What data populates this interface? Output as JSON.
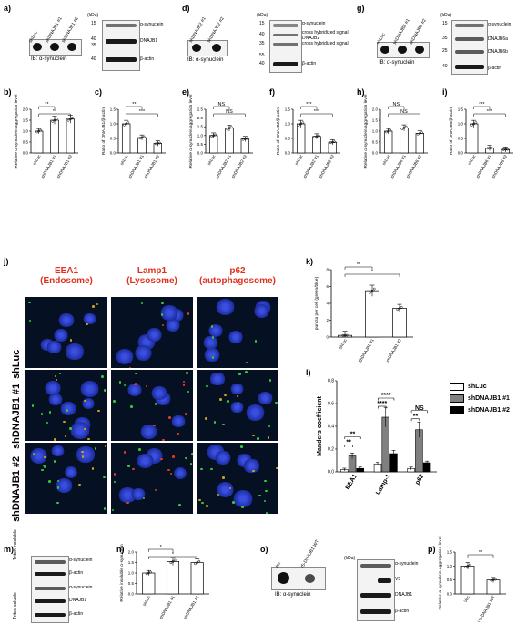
{
  "panels": {
    "a": {
      "letter": "a)",
      "lanes": [
        "shLuc",
        "shDNAJB1 #1",
        "shDNAJB1 #2"
      ],
      "ib": "IB: α-synuclein",
      "kda": "(kDa)",
      "markers": [
        "15",
        "40",
        "35",
        "40"
      ],
      "bands": [
        "α-synuclein",
        "DNAJB1",
        "β-actin"
      ]
    },
    "d": {
      "letter": "d)",
      "lanes": [
        "shDNAJB2 #1",
        "shDNAJB2 #2"
      ],
      "ib": "IB: α-synuclein",
      "kda": "(kDa)",
      "markers": [
        "15",
        "40",
        "35",
        "55",
        "40"
      ],
      "bands": [
        "α-synuclein",
        "cross hybridized signal",
        "DNAJB2",
        "cross hybridized signal",
        "β-actin"
      ]
    },
    "g": {
      "letter": "g)",
      "lanes": [
        "shLuc",
        "shDNAJB6 #1",
        "shDNAJB6 #2"
      ],
      "ib": "IB: α-synuclein",
      "kda": "(kDa)",
      "markers": [
        "15",
        "35",
        "25",
        "40"
      ],
      "bands": [
        "α-synuclein",
        "DNAJB6a",
        "DNAJB6b",
        "β-actin"
      ]
    },
    "m": {
      "letter": "m)",
      "side_labels": [
        "Triton insoluble",
        "Triton soluble"
      ],
      "bands": [
        "α-synuclein",
        "β-actin",
        "α-synuclein",
        "DNAJB1",
        "β-actin"
      ]
    },
    "o": {
      "letter": "o)",
      "lanes": [
        "Vec",
        "V5-DNAJB1 WT"
      ],
      "ib": "IB: α-synuclein",
      "kda": "(kDa)",
      "bands": [
        "α-synuclein",
        "V5",
        "DNAJB1",
        "β-actin"
      ]
    }
  },
  "j": {
    "letter": "j)",
    "columns": [
      {
        "name": "EEA1",
        "sub": "(Endosome)"
      },
      {
        "name": "Lamp1",
        "sub": "(Lysosome)"
      },
      {
        "name": "p62",
        "sub": "(autophagosome)"
      }
    ],
    "rows": [
      "shLuc",
      "shDNAJB1 #1",
      "shDNAJB1 #2"
    ],
    "scale_bar": "20 μm"
  },
  "legend": {
    "items": [
      {
        "label": "shLuc",
        "color": "#ffffff"
      },
      {
        "label": "shDNAJB1 #1",
        "color": "#808080"
      },
      {
        "label": "shDNAJB1 #2",
        "color": "#000000"
      }
    ]
  },
  "chart_data": [
    {
      "panel": "b",
      "type": "bar",
      "categories": [
        "shLuc",
        "shDNAJB1 #1",
        "shDNAJB1 #2"
      ],
      "values": [
        1.0,
        1.5,
        1.55
      ],
      "ylabel": "Relative α-synuclein aggregation level",
      "ylim": [
        0,
        2.0
      ],
      "yticks": [
        0.0,
        0.5,
        1.0,
        1.5,
        2.0
      ],
      "sig": [
        "**",
        "**"
      ]
    },
    {
      "panel": "c",
      "type": "bar",
      "categories": [
        "shLuc",
        "shDNAJB1 #1",
        "shDNAJB1 #2"
      ],
      "values": [
        1.0,
        0.53,
        0.33
      ],
      "ylabel": "Ratio of DNAJB1/β-actin",
      "ylim": [
        0,
        1.5
      ],
      "yticks": [
        0.0,
        0.5,
        1.0,
        1.5
      ],
      "sig": [
        "**",
        "***"
      ]
    },
    {
      "panel": "e",
      "type": "bar",
      "categories": [
        "shLuc",
        "shDNAJB2 #1",
        "shDNAJB2 #2"
      ],
      "values": [
        1.0,
        1.42,
        0.8
      ],
      "ylabel": "Relative α-synuclein aggregation level",
      "ylim": [
        0,
        2.5
      ],
      "yticks": [
        0.0,
        0.5,
        1.0,
        1.5,
        2.0,
        2.5
      ],
      "sig": [
        "NS",
        "NS"
      ]
    },
    {
      "panel": "f",
      "type": "bar",
      "categories": [
        "shLuc",
        "shDNAJB2 #1",
        "shDNAJB2 #2"
      ],
      "values": [
        1.0,
        0.57,
        0.37
      ],
      "ylabel": "Ratio of DNAJB2/β-actin",
      "ylim": [
        0,
        1.5
      ],
      "yticks": [
        0.0,
        0.5,
        1.0,
        1.5
      ],
      "sig": [
        "***",
        "***"
      ]
    },
    {
      "panel": "h",
      "type": "bar",
      "categories": [
        "shLuc",
        "shDNAJB6 #1",
        "shDNAJB6 #2"
      ],
      "values": [
        1.0,
        1.15,
        0.9
      ],
      "ylabel": "Relative α-synuclein aggregation level",
      "ylim": [
        0,
        2.0
      ],
      "yticks": [
        0.0,
        0.5,
        1.0,
        1.5,
        2.0
      ],
      "sig": [
        "NS",
        "NS"
      ]
    },
    {
      "panel": "i",
      "type": "bar",
      "categories": [
        "shLuc",
        "shDNAJB6 #1",
        "shDNAJB6 #2"
      ],
      "values": [
        1.0,
        0.17,
        0.12
      ],
      "ylabel": "Ratio of DNAJB6/β-actin",
      "ylim": [
        0,
        1.5
      ],
      "yticks": [
        0.0,
        0.5,
        1.0,
        1.5
      ],
      "sig": [
        "***",
        "***"
      ]
    },
    {
      "panel": "k",
      "type": "bar",
      "categories": [
        "shLuc",
        "shDNAJB1 #1",
        "shDNAJB1 #2"
      ],
      "values": [
        0.2,
        5.5,
        3.4
      ],
      "ylabel": "puncta per cell (green/blue)",
      "ylim": [
        0,
        8
      ],
      "yticks": [
        0,
        2,
        4,
        6,
        8
      ],
      "sig": [
        "**",
        "*"
      ]
    },
    {
      "panel": "l",
      "type": "bar",
      "categories": [
        "EEA1",
        "Lamp-1",
        "p62"
      ],
      "series": [
        {
          "name": "shLuc",
          "values": [
            0.02,
            0.07,
            0.03
          ]
        },
        {
          "name": "shDNAJB1 #1",
          "values": [
            0.14,
            0.48,
            0.37
          ]
        },
        {
          "name": "shDNAJB1 #2",
          "values": [
            0.03,
            0.16,
            0.08
          ]
        }
      ],
      "ylabel": "Manders coefficient",
      "ylim": [
        0,
        0.8
      ],
      "yticks": [
        0.0,
        0.2,
        0.4,
        0.6,
        0.8
      ],
      "sig": [
        "**",
        "**",
        "****",
        "****",
        "**",
        "NS"
      ]
    },
    {
      "panel": "n",
      "type": "bar",
      "categories": [
        "shLuc",
        "shDNAJB1 #1",
        "shDNAJB1 #2"
      ],
      "values": [
        1.0,
        1.55,
        1.5
      ],
      "ylabel": "Relative insoluble α-synuclein",
      "ylim": [
        0,
        2.0
      ],
      "yticks": [
        0.0,
        0.5,
        1.0,
        1.5,
        2.0
      ],
      "sig": [
        "*",
        "*"
      ]
    },
    {
      "panel": "p",
      "type": "bar",
      "categories": [
        "Vec",
        "V5-DNAJB1 WT"
      ],
      "values": [
        1.0,
        0.5
      ],
      "ylabel": "Relative α-synuclein aggregation level",
      "ylim": [
        0,
        1.5
      ],
      "yticks": [
        0.0,
        0.5,
        1.0,
        1.5
      ],
      "sig": [
        "**"
      ]
    }
  ]
}
